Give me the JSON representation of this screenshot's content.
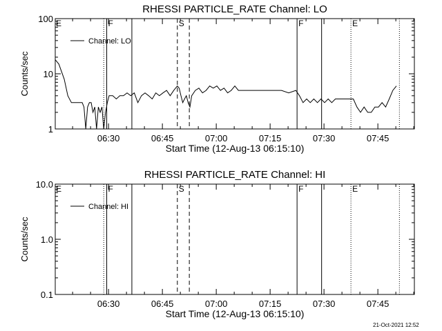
{
  "footer_timestamp": "21-Oct-2021 12:52",
  "chart_data": [
    {
      "type": "line",
      "title": "RHESSI PARTICLE_RATE Channel: LO",
      "xlabel": "Start Time (12-Aug-13 06:15:10)",
      "ylabel": "Counts/sec",
      "yscale": "log",
      "ylim": [
        1,
        100
      ],
      "yticks": [
        {
          "value": 1,
          "label": "1"
        },
        {
          "value": 10,
          "label": "10"
        },
        {
          "value": 100,
          "label": "100"
        }
      ],
      "xlim": [
        "06:15:10",
        "07:55:10"
      ],
      "xticks": [
        "06:30",
        "06:45",
        "07:00",
        "07:15",
        "07:30",
        "07:45"
      ],
      "legend": {
        "position": "top-left",
        "entries": [
          "Channel: LO"
        ]
      },
      "line_color": "#000000",
      "series": [
        {
          "name": "Channel: LO",
          "x": [
            "06:15:10",
            "06:16:10",
            "06:17:40",
            "06:18:40",
            "06:19:40",
            "06:20:40",
            "06:21:40",
            "06:22:40",
            "06:23:10",
            "06:23:40",
            "06:24:10",
            "06:24:40",
            "06:25:10",
            "06:25:40",
            "06:26:10",
            "06:26:40",
            "06:27:10",
            "06:27:40",
            "06:28:10",
            "06:28:40",
            "06:29:10",
            "06:29:40",
            "06:30:10",
            "06:31:10",
            "06:32:10",
            "06:33:10",
            "06:34:10",
            "06:35:10",
            "06:36:10",
            "06:37:10",
            "06:38:10",
            "06:39:10",
            "06:40:10",
            "06:41:10",
            "06:42:10",
            "06:43:10",
            "06:44:10",
            "06:45:10",
            "06:46:10",
            "06:47:10",
            "06:48:10",
            "06:48:40",
            "06:49:10",
            "06:49:40",
            "06:50:10",
            "06:50:40",
            "06:51:10",
            "06:51:40",
            "06:52:10",
            "06:52:40",
            "06:53:10",
            "06:54:10",
            "06:55:10",
            "06:56:10",
            "06:57:10",
            "06:58:10",
            "06:59:10",
            "07:00:10",
            "07:01:10",
            "07:02:10",
            "07:03:10",
            "07:04:10",
            "07:05:10",
            "07:06:10",
            "07:08:10",
            "07:10:10",
            "07:12:10",
            "07:14:10",
            "07:16:10",
            "07:18:10",
            "07:20:10",
            "07:22:10",
            "07:23:10",
            "07:24:10",
            "07:25:10",
            "07:26:10",
            "07:27:10",
            "07:28:10",
            "07:29:10",
            "07:30:10",
            "07:31:10",
            "07:32:10",
            "07:33:10",
            "07:34:10",
            "07:35:10",
            "07:36:10",
            "07:37:10",
            "07:38:10",
            "07:39:10",
            "07:40:10",
            "07:41:10",
            "07:42:10",
            "07:43:10",
            "07:44:10",
            "07:45:10",
            "07:46:10",
            "07:47:10",
            "07:48:10",
            "07:49:10",
            "07:50:10"
          ],
          "y": [
            18,
            15,
            8,
            4,
            3,
            3,
            3,
            3,
            2.5,
            1,
            2.5,
            3,
            3,
            2,
            2.5,
            1,
            2.5,
            2,
            2.5,
            1,
            2,
            3,
            4,
            4,
            3.5,
            4,
            4,
            4.5,
            4,
            4.5,
            3,
            4,
            4.5,
            4,
            3.5,
            4.5,
            4,
            4.5,
            5,
            4,
            5,
            5.5,
            6,
            5.5,
            4,
            3,
            3.5,
            4,
            3,
            2.5,
            4,
            5,
            5.5,
            4.5,
            5,
            6,
            5.5,
            6,
            5,
            5.5,
            4.5,
            5,
            6,
            5,
            5,
            5,
            5,
            5,
            5,
            5,
            4.5,
            5,
            4,
            3,
            3.5,
            3,
            3.5,
            3,
            3.5,
            3,
            3.5,
            3,
            3.5,
            3.5,
            3.5,
            3.5,
            3.5,
            3.5,
            2.5,
            2,
            2.5,
            2,
            2,
            2.5,
            2.5,
            3,
            2.5,
            3.5,
            5,
            6
          ]
        }
      ],
      "vertical_markers": [
        {
          "time": "06:28:40",
          "style": "dotted"
        },
        {
          "time": "06:29:30",
          "style": "solid",
          "label": "F"
        },
        {
          "time": "06:36:30",
          "style": "solid"
        },
        {
          "time": "06:49:10",
          "style": "dashed",
          "label": "S"
        },
        {
          "time": "06:52:30",
          "style": "dashed"
        },
        {
          "time": "07:22:30",
          "style": "solid",
          "label": "F"
        },
        {
          "time": "07:29:20",
          "style": "solid"
        },
        {
          "time": "07:37:30",
          "style": "dotted",
          "label": "E"
        },
        {
          "time": "07:51:00",
          "style": "dotted"
        }
      ],
      "corner_label": "E"
    },
    {
      "type": "line",
      "title": "RHESSI PARTICLE_RATE Channel: HI",
      "xlabel": "Start Time (12-Aug-13 06:15:10)",
      "ylabel": "Counts/sec",
      "yscale": "log",
      "ylim": [
        0.1,
        10
      ],
      "yticks": [
        {
          "value": 0.1,
          "label": "0.1"
        },
        {
          "value": 1,
          "label": "1.0"
        },
        {
          "value": 10,
          "label": "10.0"
        }
      ],
      "xlim": [
        "06:15:10",
        "07:55:10"
      ],
      "xticks": [
        "06:30",
        "06:45",
        "07:00",
        "07:15",
        "07:30",
        "07:45"
      ],
      "legend": {
        "position": "top-left",
        "entries": [
          "Channel: HI"
        ]
      },
      "line_color": "#000000",
      "series": [
        {
          "name": "Channel: HI",
          "x": [],
          "y": []
        }
      ],
      "vertical_markers": [
        {
          "time": "06:28:40",
          "style": "dotted"
        },
        {
          "time": "06:29:30",
          "style": "solid",
          "label": "F"
        },
        {
          "time": "06:36:30",
          "style": "solid"
        },
        {
          "time": "06:49:10",
          "style": "dashed",
          "label": "S"
        },
        {
          "time": "06:52:30",
          "style": "dashed"
        },
        {
          "time": "07:22:30",
          "style": "solid",
          "label": "F"
        },
        {
          "time": "07:29:20",
          "style": "solid"
        },
        {
          "time": "07:37:30",
          "style": "dotted",
          "label": "E"
        },
        {
          "time": "07:51:00",
          "style": "dotted"
        }
      ],
      "corner_label": "E"
    }
  ]
}
